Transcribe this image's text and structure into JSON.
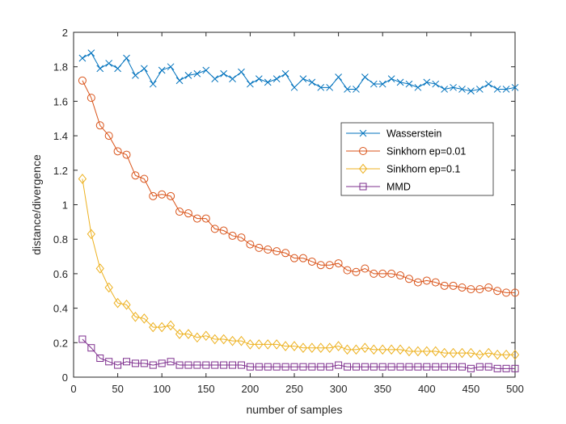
{
  "chart_data": {
    "type": "line",
    "xlabel": "number of samples",
    "ylabel": "distance/divergence",
    "xlim": [
      0,
      500
    ],
    "ylim": [
      0,
      2
    ],
    "xticks": [
      0,
      50,
      100,
      150,
      200,
      250,
      300,
      350,
      400,
      450,
      500
    ],
    "yticks": [
      0,
      0.2,
      0.4,
      0.6,
      0.8,
      1,
      1.2,
      1.4,
      1.6,
      1.8,
      2
    ],
    "grid": false,
    "legend_position": "right, middle",
    "x": [
      10,
      20,
      30,
      40,
      50,
      60,
      70,
      80,
      90,
      100,
      110,
      120,
      130,
      140,
      150,
      160,
      170,
      180,
      190,
      200,
      210,
      220,
      230,
      240,
      250,
      260,
      270,
      280,
      290,
      300,
      310,
      320,
      330,
      340,
      350,
      360,
      370,
      380,
      390,
      400,
      410,
      420,
      430,
      440,
      450,
      460,
      470,
      480,
      490,
      500
    ],
    "series": [
      {
        "name": "Wasserstein",
        "color": "#0072BD",
        "marker": "x",
        "values": [
          1.85,
          1.88,
          1.79,
          1.82,
          1.79,
          1.85,
          1.75,
          1.79,
          1.7,
          1.78,
          1.8,
          1.72,
          1.75,
          1.76,
          1.78,
          1.73,
          1.76,
          1.73,
          1.77,
          1.7,
          1.73,
          1.71,
          1.73,
          1.76,
          1.68,
          1.73,
          1.71,
          1.68,
          1.68,
          1.74,
          1.67,
          1.67,
          1.74,
          1.7,
          1.7,
          1.73,
          1.71,
          1.7,
          1.68,
          1.71,
          1.7,
          1.67,
          1.68,
          1.67,
          1.66,
          1.67,
          1.7,
          1.67,
          1.67,
          1.68
        ]
      },
      {
        "name": "Sinkhorn ep=0.01",
        "color": "#D95319",
        "marker": "o",
        "values": [
          1.72,
          1.62,
          1.46,
          1.4,
          1.31,
          1.29,
          1.17,
          1.15,
          1.05,
          1.06,
          1.05,
          0.96,
          0.95,
          0.92,
          0.92,
          0.86,
          0.85,
          0.82,
          0.81,
          0.77,
          0.75,
          0.74,
          0.73,
          0.72,
          0.69,
          0.69,
          0.67,
          0.65,
          0.65,
          0.66,
          0.62,
          0.61,
          0.63,
          0.6,
          0.6,
          0.6,
          0.59,
          0.57,
          0.55,
          0.56,
          0.55,
          0.53,
          0.53,
          0.52,
          0.51,
          0.51,
          0.52,
          0.5,
          0.49,
          0.49
        ]
      },
      {
        "name": "Sinkhorn ep=0.1",
        "color": "#EDB120",
        "marker": "d",
        "values": [
          1.15,
          0.83,
          0.63,
          0.52,
          0.43,
          0.42,
          0.35,
          0.34,
          0.29,
          0.29,
          0.3,
          0.25,
          0.25,
          0.23,
          0.24,
          0.22,
          0.22,
          0.21,
          0.21,
          0.19,
          0.19,
          0.19,
          0.19,
          0.18,
          0.18,
          0.17,
          0.17,
          0.17,
          0.17,
          0.18,
          0.16,
          0.16,
          0.17,
          0.16,
          0.16,
          0.16,
          0.16,
          0.15,
          0.15,
          0.15,
          0.15,
          0.14,
          0.14,
          0.14,
          0.14,
          0.13,
          0.14,
          0.13,
          0.13,
          0.13
        ]
      },
      {
        "name": "MMD",
        "color": "#7E2F8E",
        "marker": "s",
        "values": [
          0.22,
          0.17,
          0.11,
          0.09,
          0.07,
          0.09,
          0.08,
          0.08,
          0.07,
          0.08,
          0.09,
          0.07,
          0.07,
          0.07,
          0.07,
          0.07,
          0.07,
          0.07,
          0.07,
          0.06,
          0.06,
          0.06,
          0.06,
          0.06,
          0.06,
          0.06,
          0.06,
          0.06,
          0.06,
          0.07,
          0.06,
          0.06,
          0.06,
          0.06,
          0.06,
          0.06,
          0.06,
          0.06,
          0.06,
          0.06,
          0.06,
          0.06,
          0.06,
          0.06,
          0.05,
          0.06,
          0.06,
          0.05,
          0.05,
          0.05
        ]
      }
    ]
  }
}
